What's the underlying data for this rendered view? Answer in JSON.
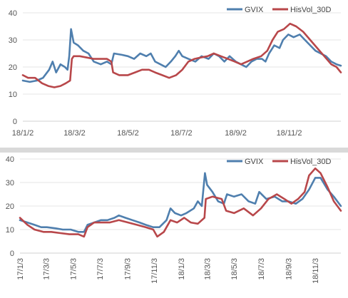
{
  "chart_data": [
    {
      "type": "line",
      "title": "",
      "xlabel": "",
      "ylabel": "",
      "ylim": [
        0,
        40
      ],
      "yticks": [
        0,
        10,
        20,
        30,
        40
      ],
      "x_range": [
        "18/1/2",
        "18/12/31"
      ],
      "xtick_labels": [
        "18/1/2",
        "18/3/2",
        "18/5/2",
        "18/7/2",
        "18/9/2",
        "18/11/2"
      ],
      "xtick_dates": [
        "2018-01-02",
        "2018-03-02",
        "2018-05-02",
        "2018-07-02",
        "2018-09-02",
        "2018-11-02"
      ],
      "grid": "horizontal",
      "legend": "top-right",
      "series": [
        {
          "name": "GVIX",
          "color": "#4f7fae",
          "points": [
            [
              "2018-01-02",
              15
            ],
            [
              "2018-01-10",
              14.5
            ],
            [
              "2018-01-18",
              15
            ],
            [
              "2018-01-25",
              16
            ],
            [
              "2018-02-01",
              19
            ],
            [
              "2018-02-05",
              22
            ],
            [
              "2018-02-09",
              18
            ],
            [
              "2018-02-14",
              21
            ],
            [
              "2018-02-19",
              20
            ],
            [
              "2018-02-22",
              19
            ],
            [
              "2018-02-24",
              24
            ],
            [
              "2018-02-26",
              34
            ],
            [
              "2018-03-01",
              29
            ],
            [
              "2018-03-06",
              28
            ],
            [
              "2018-03-12",
              26
            ],
            [
              "2018-03-18",
              25
            ],
            [
              "2018-03-24",
              22
            ],
            [
              "2018-04-01",
              21
            ],
            [
              "2018-04-08",
              22
            ],
            [
              "2018-04-13",
              21
            ],
            [
              "2018-04-16",
              25
            ],
            [
              "2018-04-25",
              24.5
            ],
            [
              "2018-05-02",
              24
            ],
            [
              "2018-05-09",
              23
            ],
            [
              "2018-05-16",
              25
            ],
            [
              "2018-05-23",
              24
            ],
            [
              "2018-05-28",
              25
            ],
            [
              "2018-06-02",
              22
            ],
            [
              "2018-06-08",
              21
            ],
            [
              "2018-06-14",
              20
            ],
            [
              "2018-06-20",
              22
            ],
            [
              "2018-06-25",
              24
            ],
            [
              "2018-06-29",
              26
            ],
            [
              "2018-07-03",
              24
            ],
            [
              "2018-07-10",
              23
            ],
            [
              "2018-07-18",
              22
            ],
            [
              "2018-07-25",
              24
            ],
            [
              "2018-08-02",
              23
            ],
            [
              "2018-08-08",
              25
            ],
            [
              "2018-08-14",
              24
            ],
            [
              "2018-08-20",
              22
            ],
            [
              "2018-08-26",
              24
            ],
            [
              "2018-09-02",
              22
            ],
            [
              "2018-09-08",
              21
            ],
            [
              "2018-09-14",
              20
            ],
            [
              "2018-09-20",
              22
            ],
            [
              "2018-09-26",
              23
            ],
            [
              "2018-10-02",
              23
            ],
            [
              "2018-10-06",
              22
            ],
            [
              "2018-10-10",
              25
            ],
            [
              "2018-10-16",
              28
            ],
            [
              "2018-10-22",
              27
            ],
            [
              "2018-10-26",
              30
            ],
            [
              "2018-11-01",
              32
            ],
            [
              "2018-11-07",
              31
            ],
            [
              "2018-11-14",
              32
            ],
            [
              "2018-11-20",
              30
            ],
            [
              "2018-11-26",
              28
            ],
            [
              "2018-12-02",
              26
            ],
            [
              "2018-12-08",
              25
            ],
            [
              "2018-12-14",
              24
            ],
            [
              "2018-12-20",
              22
            ],
            [
              "2018-12-26",
              21
            ],
            [
              "2018-12-31",
              20.5
            ]
          ]
        },
        {
          "name": "HisVol_30D",
          "color": "#b8474a",
          "points": [
            [
              "2018-01-02",
              17
            ],
            [
              "2018-01-08",
              16
            ],
            [
              "2018-01-16",
              16
            ],
            [
              "2018-01-24",
              14
            ],
            [
              "2018-01-31",
              13
            ],
            [
              "2018-02-07",
              12.5
            ],
            [
              "2018-02-14",
              13
            ],
            [
              "2018-02-20",
              14
            ],
            [
              "2018-02-25",
              15
            ],
            [
              "2018-02-27",
              23
            ],
            [
              "2018-03-01",
              24
            ],
            [
              "2018-03-08",
              24
            ],
            [
              "2018-03-16",
              23.5
            ],
            [
              "2018-03-24",
              23
            ],
            [
              "2018-04-01",
              23
            ],
            [
              "2018-04-08",
              23
            ],
            [
              "2018-04-13",
              22
            ],
            [
              "2018-04-15",
              18
            ],
            [
              "2018-04-22",
              17
            ],
            [
              "2018-05-02",
              17
            ],
            [
              "2018-05-10",
              18
            ],
            [
              "2018-05-18",
              19
            ],
            [
              "2018-05-26",
              19
            ],
            [
              "2018-06-02",
              18
            ],
            [
              "2018-06-10",
              17
            ],
            [
              "2018-06-18",
              16
            ],
            [
              "2018-06-26",
              17
            ],
            [
              "2018-07-03",
              19
            ],
            [
              "2018-07-10",
              22
            ],
            [
              "2018-07-17",
              23
            ],
            [
              "2018-07-24",
              23.5
            ],
            [
              "2018-08-01",
              24
            ],
            [
              "2018-08-08",
              25
            ],
            [
              "2018-08-16",
              24
            ],
            [
              "2018-08-24",
              23
            ],
            [
              "2018-09-01",
              22
            ],
            [
              "2018-09-08",
              21
            ],
            [
              "2018-09-15",
              22
            ],
            [
              "2018-09-22",
              23
            ],
            [
              "2018-10-01",
              24
            ],
            [
              "2018-10-08",
              26
            ],
            [
              "2018-10-14",
              30
            ],
            [
              "2018-10-20",
              33
            ],
            [
              "2018-10-27",
              34
            ],
            [
              "2018-11-03",
              36
            ],
            [
              "2018-11-10",
              35
            ],
            [
              "2018-11-18",
              33
            ],
            [
              "2018-11-26",
              30
            ],
            [
              "2018-12-04",
              27
            ],
            [
              "2018-12-12",
              24
            ],
            [
              "2018-12-20",
              21
            ],
            [
              "2018-12-26",
              20
            ],
            [
              "2018-12-31",
              18
            ]
          ]
        }
      ]
    },
    {
      "type": "line",
      "title": "",
      "xlabel": "",
      "ylabel": "",
      "ylim": [
        0,
        40
      ],
      "yticks": [
        0,
        10,
        20,
        30,
        40
      ],
      "x_range": [
        "17/1/3",
        "18/12/31"
      ],
      "xtick_labels": [
        "17/1/3",
        "17/3/3",
        "17/5/3",
        "17/7/3",
        "17/9/3",
        "17/11/3",
        "18/1/3",
        "18/3/3",
        "18/5/3",
        "18/7/3",
        "18/9/3",
        "18/11/3"
      ],
      "xtick_dates": [
        "2017-01-03",
        "2017-03-03",
        "2017-05-03",
        "2017-07-03",
        "2017-09-03",
        "2017-11-03",
        "2018-01-03",
        "2018-03-03",
        "2018-05-03",
        "2018-07-03",
        "2018-09-03",
        "2018-11-03"
      ],
      "grid": "horizontal",
      "legend": "top-right",
      "series": [
        {
          "name": "GVIX",
          "color": "#4f7fae",
          "points": [
            [
              "2017-01-03",
              14
            ],
            [
              "2017-01-20",
              13
            ],
            [
              "2017-02-05",
              12
            ],
            [
              "2017-02-20",
              11
            ],
            [
              "2017-03-05",
              11
            ],
            [
              "2017-03-25",
              10.5
            ],
            [
              "2017-04-10",
              10
            ],
            [
              "2017-04-28",
              10
            ],
            [
              "2017-05-15",
              9
            ],
            [
              "2017-05-28",
              9
            ],
            [
              "2017-06-05",
              12
            ],
            [
              "2017-06-20",
              13
            ],
            [
              "2017-07-05",
              14
            ],
            [
              "2017-07-20",
              14
            ],
            [
              "2017-08-05",
              15
            ],
            [
              "2017-08-15",
              16
            ],
            [
              "2017-08-30",
              15
            ],
            [
              "2017-09-15",
              14
            ],
            [
              "2017-10-01",
              13
            ],
            [
              "2017-10-15",
              12
            ],
            [
              "2017-11-01",
              11
            ],
            [
              "2017-11-15",
              11
            ],
            [
              "2017-12-01",
              14
            ],
            [
              "2017-12-10",
              19
            ],
            [
              "2017-12-20",
              17
            ],
            [
              "2018-01-03",
              16
            ],
            [
              "2018-01-15",
              17
            ],
            [
              "2018-02-01",
              19
            ],
            [
              "2018-02-10",
              22
            ],
            [
              "2018-02-19",
              20
            ],
            [
              "2018-02-26",
              34
            ],
            [
              "2018-03-03",
              29
            ],
            [
              "2018-03-15",
              26
            ],
            [
              "2018-03-28",
              22
            ],
            [
              "2018-04-10",
              21
            ],
            [
              "2018-04-17",
              25
            ],
            [
              "2018-05-03",
              24
            ],
            [
              "2018-05-20",
              25
            ],
            [
              "2018-06-05",
              22
            ],
            [
              "2018-06-20",
              21
            ],
            [
              "2018-06-29",
              26
            ],
            [
              "2018-07-15",
              23
            ],
            [
              "2018-08-03",
              24
            ],
            [
              "2018-08-20",
              22
            ],
            [
              "2018-09-03",
              22
            ],
            [
              "2018-09-20",
              21
            ],
            [
              "2018-10-05",
              23
            ],
            [
              "2018-10-20",
              27
            ],
            [
              "2018-11-03",
              32
            ],
            [
              "2018-11-15",
              32
            ],
            [
              "2018-12-01",
              27
            ],
            [
              "2018-12-15",
              24
            ],
            [
              "2018-12-31",
              20
            ]
          ]
        },
        {
          "name": "HisVol_30D",
          "color": "#b8474a",
          "points": [
            [
              "2017-01-03",
              15
            ],
            [
              "2017-01-20",
              12
            ],
            [
              "2017-02-05",
              10
            ],
            [
              "2017-02-25",
              9
            ],
            [
              "2017-03-15",
              9
            ],
            [
              "2017-04-05",
              8.5
            ],
            [
              "2017-04-25",
              8
            ],
            [
              "2017-05-15",
              8
            ],
            [
              "2017-05-28",
              7
            ],
            [
              "2017-06-05",
              11
            ],
            [
              "2017-06-20",
              13
            ],
            [
              "2017-07-05",
              13
            ],
            [
              "2017-07-25",
              13
            ],
            [
              "2017-08-15",
              14
            ],
            [
              "2017-09-05",
              13
            ],
            [
              "2017-09-25",
              12
            ],
            [
              "2017-10-15",
              11
            ],
            [
              "2017-11-01",
              10
            ],
            [
              "2017-11-10",
              7
            ],
            [
              "2017-11-25",
              9
            ],
            [
              "2017-12-10",
              14
            ],
            [
              "2017-12-25",
              13
            ],
            [
              "2018-01-10",
              15
            ],
            [
              "2018-01-25",
              13
            ],
            [
              "2018-02-10",
              12.5
            ],
            [
              "2018-02-25",
              15
            ],
            [
              "2018-02-28",
              23
            ],
            [
              "2018-03-15",
              24
            ],
            [
              "2018-04-05",
              23
            ],
            [
              "2018-04-15",
              18
            ],
            [
              "2018-05-03",
              17
            ],
            [
              "2018-05-25",
              19
            ],
            [
              "2018-06-15",
              16
            ],
            [
              "2018-07-03",
              19
            ],
            [
              "2018-07-20",
              23
            ],
            [
              "2018-08-08",
              25
            ],
            [
              "2018-08-25",
              23
            ],
            [
              "2018-09-10",
              21
            ],
            [
              "2018-09-25",
              23
            ],
            [
              "2018-10-10",
              26
            ],
            [
              "2018-10-20",
              33
            ],
            [
              "2018-11-03",
              36
            ],
            [
              "2018-11-15",
              34
            ],
            [
              "2018-12-01",
              28
            ],
            [
              "2018-12-15",
              22
            ],
            [
              "2018-12-31",
              18
            ]
          ]
        }
      ]
    }
  ]
}
